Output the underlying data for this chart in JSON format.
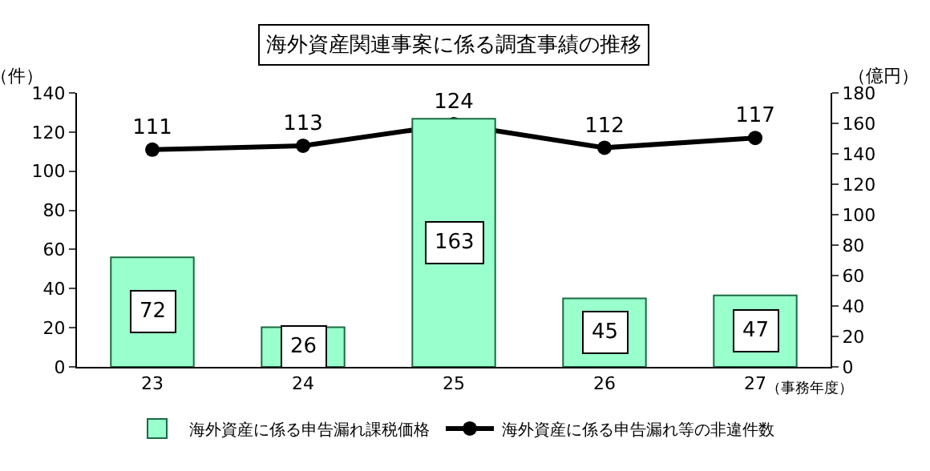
{
  "chart_data": {
    "type": "bar",
    "title": "海外資産関連事案に係る調査事績の推移",
    "categories": [
      "23",
      "24",
      "25",
      "26",
      "27"
    ],
    "series": [
      {
        "name": "海外資産に係る申告漏れ課税価格",
        "axis": "y2",
        "color": "#99ffcc",
        "values": [
          72,
          26,
          163,
          45,
          47
        ]
      },
      {
        "name": "海外資産に係る申告漏れ等の非違件数",
        "type": "line",
        "color": "#000000",
        "marker": "circle",
        "values": [
          111,
          113,
          124,
          112,
          117
        ]
      }
    ],
    "ylabel": "（件）",
    "y2label": "（億円）",
    "xlabel": "（事務年度）",
    "ylim": [
      0,
      140
    ],
    "yticks": [
      0,
      20,
      40,
      60,
      80,
      100,
      120,
      140
    ],
    "y2lim": [
      0,
      180
    ],
    "y2ticks": [
      0,
      20,
      40,
      60,
      80,
      100,
      120,
      140,
      160,
      180
    ],
    "data_labels": true,
    "legend": "bottom",
    "grid": false
  }
}
